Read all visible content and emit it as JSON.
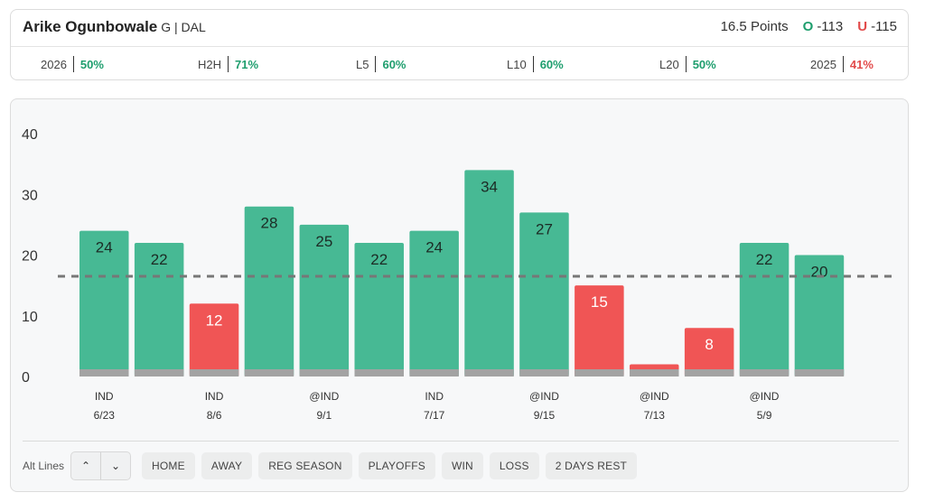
{
  "player": {
    "name": "Arike Ogunbowale",
    "meta": "G | DAL",
    "line": "16.5 Points",
    "over_label": "O",
    "over_odds": "-113",
    "under_label": "U",
    "under_odds": "-115"
  },
  "stats": [
    {
      "label": "2026",
      "value": "50%",
      "status": "good"
    },
    {
      "label": "H2H",
      "value": "71%",
      "status": "good"
    },
    {
      "label": "L5",
      "value": "60%",
      "status": "good"
    },
    {
      "label": "L10",
      "value": "60%",
      "status": "good"
    },
    {
      "label": "L20",
      "value": "50%",
      "status": "good"
    },
    {
      "label": "2025",
      "value": "41%",
      "status": "bad"
    }
  ],
  "chart_data": {
    "type": "bar",
    "categories": [
      "IND 6/23",
      "",
      "IND 8/6",
      "",
      "@IND 9/1",
      "",
      "IND 7/17",
      "",
      "@IND 9/15",
      "",
      "@IND 7/13",
      "",
      "@IND 5/9",
      ""
    ],
    "x_labels": [
      {
        "opp": "IND",
        "date": "6/23"
      },
      {
        "opp": "",
        "date": ""
      },
      {
        "opp": "IND",
        "date": "8/6"
      },
      {
        "opp": "",
        "date": ""
      },
      {
        "opp": "@IND",
        "date": "9/1"
      },
      {
        "opp": "",
        "date": ""
      },
      {
        "opp": "IND",
        "date": "7/17"
      },
      {
        "opp": "",
        "date": ""
      },
      {
        "opp": "@IND",
        "date": "9/15"
      },
      {
        "opp": "",
        "date": ""
      },
      {
        "opp": "@IND",
        "date": "7/13"
      },
      {
        "opp": "",
        "date": ""
      },
      {
        "opp": "@IND",
        "date": "5/9"
      },
      {
        "opp": "",
        "date": ""
      }
    ],
    "values": [
      24,
      22,
      12,
      28,
      25,
      22,
      24,
      34,
      27,
      15,
      2,
      8,
      22,
      20
    ],
    "value_labels": [
      "24",
      "22",
      "12",
      "28",
      "25",
      "22",
      "24",
      "34",
      "27",
      "15",
      "",
      "8",
      "22",
      "20"
    ],
    "threshold": 16.5,
    "ylim": [
      0,
      40
    ],
    "yticks": [
      0,
      10,
      20,
      30,
      40
    ],
    "over_color": "#47b994",
    "under_color": "#f05555",
    "baseline_color": "#a3a3a3",
    "threshold_color": "#777777"
  },
  "controls": {
    "alt_lines_label": "Alt Lines",
    "up_icon": "chevron-up-icon",
    "down_icon": "chevron-down-icon",
    "up_glyph": "⌃",
    "down_glyph": "⌄",
    "filters": [
      "HOME",
      "AWAY",
      "REG SEASON",
      "PLAYOFFS",
      "WIN",
      "LOSS",
      "2 DAYS REST"
    ]
  }
}
